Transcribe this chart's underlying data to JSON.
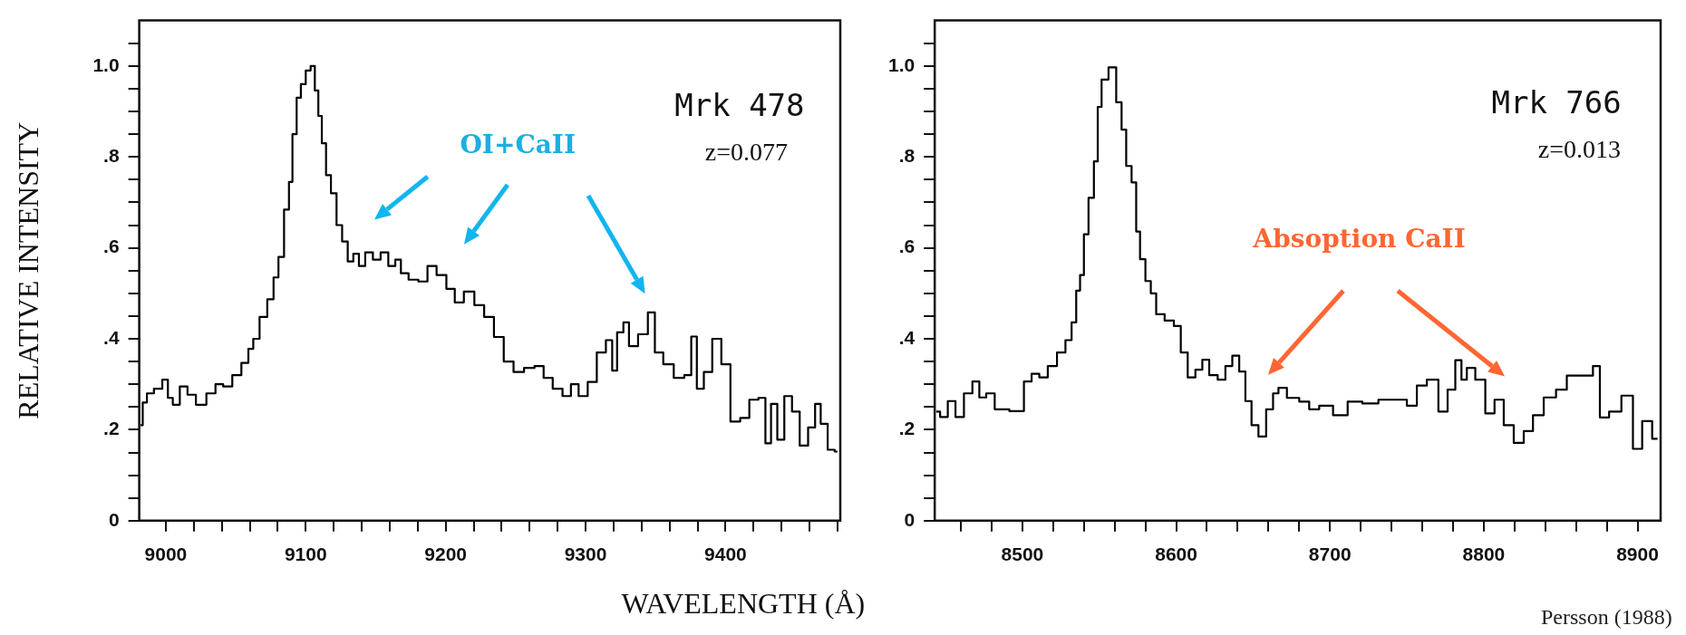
{
  "chart_data": [
    {
      "type": "step",
      "ylabel": "RELATIVE INTENSITY",
      "xlabel": "WAVELENGTH (Å)",
      "annotations": [
        "Mrk 478",
        "z=0.077",
        "OI+CaII"
      ],
      "color": "#000000",
      "legend": false,
      "x": [
        8982,
        8985,
        8988,
        8995,
        9000,
        9003,
        9007,
        9013,
        9018,
        9025,
        9033,
        9038,
        9044,
        9051,
        9057,
        9061,
        9064,
        9070,
        9075,
        9079,
        9082,
        9087,
        9089,
        9092,
        9095,
        9098,
        9102,
        9105,
        9108,
        9110,
        9113,
        9116,
        9120,
        9124,
        9128,
        9132,
        9136,
        9140,
        9145,
        9151,
        9156,
        9162,
        9166,
        9170,
        9177,
        9184,
        9190,
        9197,
        9204,
        9209,
        9217,
        9224,
        9231,
        9238,
        9245,
        9252,
        9260,
        9267,
        9273,
        9280,
        9287,
        9292,
        9298,
        9305,
        9311,
        9318,
        9320,
        9325,
        9329,
        9333,
        9342,
        9347,
        9352,
        9359,
        9367,
        9374,
        9377,
        9382,
        9387,
        9394,
        9400,
        9407,
        9414,
        9420,
        9427,
        9430,
        9435,
        9439,
        9445,
        9450,
        9456,
        9462,
        9466,
        9470,
        9476,
        9480
      ],
      "values": [
        0.21,
        0.26,
        0.28,
        0.29,
        0.31,
        0.27,
        0.255,
        0.295,
        0.277,
        0.255,
        0.28,
        0.3,
        0.295,
        0.32,
        0.347,
        0.378,
        0.4,
        0.448,
        0.487,
        0.535,
        0.58,
        0.684,
        0.745,
        0.85,
        0.93,
        0.96,
        0.99,
        1.0,
        0.946,
        0.89,
        0.83,
        0.76,
        0.72,
        0.65,
        0.614,
        0.57,
        0.587,
        0.56,
        0.59,
        0.574,
        0.59,
        0.56,
        0.574,
        0.544,
        0.53,
        0.526,
        0.56,
        0.54,
        0.51,
        0.48,
        0.504,
        0.474,
        0.448,
        0.404,
        0.35,
        0.327,
        0.336,
        0.34,
        0.314,
        0.29,
        0.274,
        0.3,
        0.274,
        0.305,
        0.37,
        0.397,
        0.33,
        0.414,
        0.436,
        0.384,
        0.41,
        0.458,
        0.37,
        0.344,
        0.314,
        0.32,
        0.405,
        0.29,
        0.327,
        0.4,
        0.344,
        0.218,
        0.226,
        0.266,
        0.27,
        0.17,
        0.257,
        0.178,
        0.274,
        0.24,
        0.165,
        0.205,
        0.257,
        0.213,
        0.156,
        0.152
      ],
      "xlim": [
        8981,
        9482
      ],
      "xticks": [
        {
          "value": 9000,
          "label": "9000"
        },
        {
          "value": 9020,
          "label": null
        },
        {
          "value": 9040,
          "label": null
        },
        {
          "value": 9060,
          "label": null
        },
        {
          "value": 9080,
          "label": null
        },
        {
          "value": 9100,
          "label": "9100"
        },
        {
          "value": 9120,
          "label": null
        },
        {
          "value": 9140,
          "label": null
        },
        {
          "value": 9160,
          "label": null
        },
        {
          "value": 9180,
          "label": null
        },
        {
          "value": 9200,
          "label": "9200"
        },
        {
          "value": 9220,
          "label": null
        },
        {
          "value": 9240,
          "label": null
        },
        {
          "value": 9260,
          "label": null
        },
        {
          "value": 9280,
          "label": null
        },
        {
          "value": 9300,
          "label": "9300"
        },
        {
          "value": 9320,
          "label": null
        },
        {
          "value": 9340,
          "label": null
        },
        {
          "value": 9360,
          "label": null
        },
        {
          "value": 9380,
          "label": null
        },
        {
          "value": 9400,
          "label": "9400"
        },
        {
          "value": 9420,
          "label": null
        },
        {
          "value": 9440,
          "label": null
        },
        {
          "value": 9460,
          "label": null
        },
        {
          "value": 9480,
          "label": null
        }
      ],
      "ylim": [
        0,
        1.1
      ],
      "yticks": [
        {
          "value": 0,
          "label": "0"
        },
        {
          "value": 0.05,
          "label": null
        },
        {
          "value": 0.1,
          "label": null
        },
        {
          "value": 0.15,
          "label": null
        },
        {
          "value": 0.2,
          "label": ".2"
        },
        {
          "value": 0.25,
          "label": null
        },
        {
          "value": 0.3,
          "label": null
        },
        {
          "value": 0.35,
          "label": null
        },
        {
          "value": 0.4,
          "label": ".4"
        },
        {
          "value": 0.45,
          "label": null
        },
        {
          "value": 0.5,
          "label": null
        },
        {
          "value": 0.55,
          "label": null
        },
        {
          "value": 0.6,
          "label": ".6"
        },
        {
          "value": 0.65,
          "label": null
        },
        {
          "value": 0.7,
          "label": null
        },
        {
          "value": 0.75,
          "label": null
        },
        {
          "value": 0.8,
          "label": ".8"
        },
        {
          "value": 0.85,
          "label": null
        },
        {
          "value": 0.9,
          "label": null
        },
        {
          "value": 0.95,
          "label": null
        },
        {
          "value": 1.0,
          "label": "1.0"
        },
        {
          "value": 1.05,
          "label": null
        }
      ]
    },
    {
      "type": "step",
      "annotations": [
        "Mrk 766",
        "z=0.013",
        "Absoption CaII",
        "Persson (1988)"
      ],
      "color": "#000000",
      "legend": false,
      "x": [
        8444,
        8449,
        8454,
        8459,
        8465,
        8470,
        8474,
        8479,
        8485,
        8498,
        8504,
        8508,
        8514,
        8519,
        8526,
        8530,
        8534,
        8536,
        8539,
        8541,
        8545,
        8548,
        8550,
        8553,
        8559,
        8563,
        8566,
        8569,
        8573,
        8575,
        8578,
        8582,
        8585,
        8589,
        8596,
        8601,
        8605,
        8610,
        8615,
        8619,
        8624,
        8630,
        8634,
        8639,
        8643,
        8647,
        8651,
        8656,
        8661,
        8665,
        8668,
        8676,
        8684,
        8689,
        8697,
        8707,
        8716,
        8726,
        8737,
        8746,
        8754,
        8759,
        8767,
        8774,
        8779,
        8784,
        8787,
        8791,
        8798,
        8804,
        8810,
        8816,
        8823,
        8829,
        8835,
        8843,
        8851,
        8857,
        8869,
        8873,
        8878,
        8885,
        8894,
        8900,
        8906,
        8913
      ],
      "values": [
        0.24,
        0.228,
        0.263,
        0.228,
        0.28,
        0.306,
        0.271,
        0.28,
        0.245,
        0.241,
        0.306,
        0.323,
        0.315,
        0.34,
        0.37,
        0.397,
        0.436,
        0.506,
        0.54,
        0.63,
        0.71,
        0.79,
        0.91,
        0.97,
        0.997,
        0.92,
        0.86,
        0.78,
        0.744,
        0.636,
        0.575,
        0.527,
        0.5,
        0.454,
        0.44,
        0.428,
        0.37,
        0.315,
        0.332,
        0.354,
        0.32,
        0.31,
        0.34,
        0.363,
        0.328,
        0.263,
        0.21,
        0.185,
        0.245,
        0.28,
        0.292,
        0.27,
        0.262,
        0.245,
        0.253,
        0.232,
        0.262,
        0.258,
        0.266,
        0.266,
        0.253,
        0.297,
        0.31,
        0.24,
        0.288,
        0.353,
        0.31,
        0.336,
        0.31,
        0.236,
        0.266,
        0.21,
        0.171,
        0.197,
        0.232,
        0.271,
        0.288,
        0.319,
        0.319,
        0.34,
        0.227,
        0.24,
        0.275,
        0.158,
        0.219,
        0.18
      ],
      "xlim": [
        8443,
        8915
      ],
      "xticks": [
        {
          "value": 8460,
          "label": null
        },
        {
          "value": 8480,
          "label": null
        },
        {
          "value": 8500,
          "label": "8500"
        },
        {
          "value": 8520,
          "label": null
        },
        {
          "value": 8540,
          "label": null
        },
        {
          "value": 8560,
          "label": null
        },
        {
          "value": 8580,
          "label": null
        },
        {
          "value": 8600,
          "label": "8600"
        },
        {
          "value": 8620,
          "label": null
        },
        {
          "value": 8640,
          "label": null
        },
        {
          "value": 8660,
          "label": null
        },
        {
          "value": 8680,
          "label": null
        },
        {
          "value": 8700,
          "label": "8700"
        },
        {
          "value": 8720,
          "label": null
        },
        {
          "value": 8740,
          "label": null
        },
        {
          "value": 8760,
          "label": null
        },
        {
          "value": 8780,
          "label": null
        },
        {
          "value": 8800,
          "label": "8800"
        },
        {
          "value": 8820,
          "label": null
        },
        {
          "value": 8840,
          "label": null
        },
        {
          "value": 8860,
          "label": null
        },
        {
          "value": 8880,
          "label": null
        },
        {
          "value": 8900,
          "label": "8900"
        }
      ],
      "ylim": [
        0,
        1.1
      ],
      "yticks": [
        {
          "value": 0,
          "label": "0"
        },
        {
          "value": 0.05,
          "label": null
        },
        {
          "value": 0.1,
          "label": null
        },
        {
          "value": 0.15,
          "label": null
        },
        {
          "value": 0.2,
          "label": ".2"
        },
        {
          "value": 0.25,
          "label": null
        },
        {
          "value": 0.3,
          "label": null
        },
        {
          "value": 0.35,
          "label": null
        },
        {
          "value": 0.4,
          "label": ".4"
        },
        {
          "value": 0.45,
          "label": null
        },
        {
          "value": 0.5,
          "label": null
        },
        {
          "value": 0.55,
          "label": null
        },
        {
          "value": 0.6,
          "label": ".6"
        },
        {
          "value": 0.65,
          "label": null
        },
        {
          "value": 0.7,
          "label": null
        },
        {
          "value": 0.75,
          "label": null
        },
        {
          "value": 0.8,
          "label": ".8"
        },
        {
          "value": 0.85,
          "label": null
        },
        {
          "value": 0.9,
          "label": null
        },
        {
          "value": 0.95,
          "label": null
        },
        {
          "value": 1.0,
          "label": "1.0"
        },
        {
          "value": 1.05,
          "label": null
        }
      ]
    }
  ]
}
